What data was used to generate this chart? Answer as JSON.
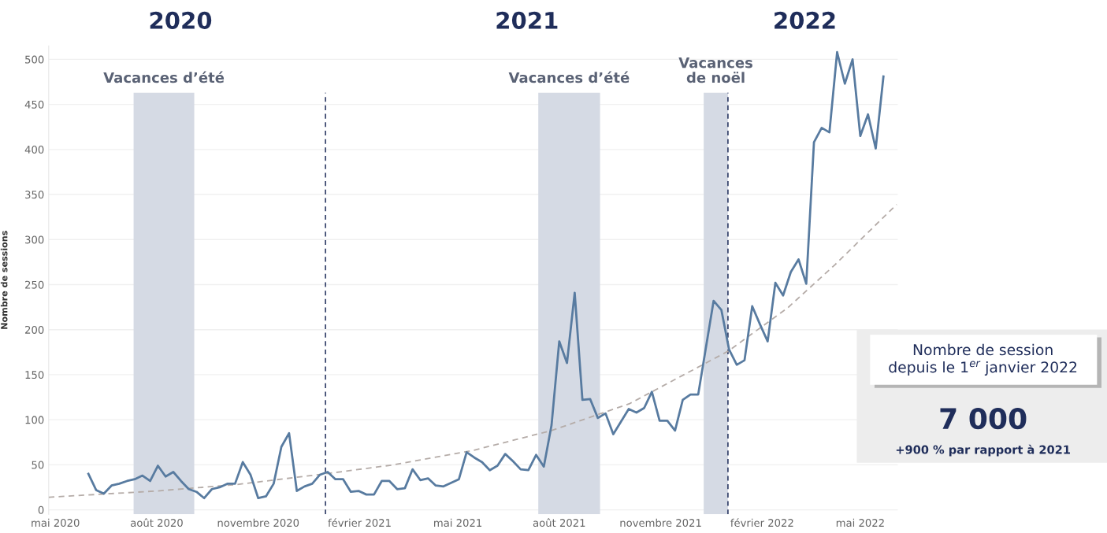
{
  "chart_data": {
    "type": "line",
    "ylabel": "Nombre de sessions",
    "x": [
      "2020-05-31",
      "2020-06-07",
      "2020-06-14",
      "2020-06-21",
      "2020-06-28",
      "2020-07-05",
      "2020-07-12",
      "2020-07-19",
      "2020-07-26",
      "2020-08-02",
      "2020-08-09",
      "2020-08-16",
      "2020-08-23",
      "2020-08-30",
      "2020-09-06",
      "2020-09-13",
      "2020-09-20",
      "2020-09-27",
      "2020-10-04",
      "2020-10-11",
      "2020-10-18",
      "2020-10-25",
      "2020-11-01",
      "2020-11-08",
      "2020-11-15",
      "2020-11-22",
      "2020-11-29",
      "2020-12-06",
      "2020-12-13",
      "2020-12-20",
      "2020-12-27",
      "2021-01-03",
      "2021-01-10",
      "2021-01-17",
      "2021-01-24",
      "2021-01-31",
      "2021-02-07",
      "2021-02-14",
      "2021-02-21",
      "2021-02-28",
      "2021-03-07",
      "2021-03-14",
      "2021-03-21",
      "2021-03-28",
      "2021-04-04",
      "2021-04-11",
      "2021-04-18",
      "2021-04-25",
      "2021-05-02",
      "2021-05-09",
      "2021-05-16",
      "2021-05-23",
      "2021-05-30",
      "2021-06-06",
      "2021-06-13",
      "2021-06-20",
      "2021-06-27",
      "2021-07-04",
      "2021-07-11",
      "2021-07-18",
      "2021-07-25",
      "2021-08-01",
      "2021-08-08",
      "2021-08-15",
      "2021-08-22",
      "2021-08-29",
      "2021-09-05",
      "2021-09-12",
      "2021-09-19",
      "2021-09-26",
      "2021-10-03",
      "2021-10-10",
      "2021-10-17",
      "2021-10-24",
      "2021-10-31",
      "2021-11-07",
      "2021-11-14",
      "2021-11-21",
      "2021-11-28",
      "2021-12-05",
      "2021-12-12",
      "2021-12-19",
      "2021-12-26",
      "2022-01-02",
      "2022-01-09",
      "2022-01-16",
      "2022-01-23",
      "2022-01-30",
      "2022-02-06",
      "2022-02-13",
      "2022-02-20",
      "2022-02-27",
      "2022-03-06",
      "2022-03-13",
      "2022-03-20",
      "2022-03-27",
      "2022-04-03",
      "2022-04-10",
      "2022-04-17",
      "2022-04-24",
      "2022-05-01",
      "2022-05-08",
      "2022-05-15",
      "2022-05-22"
    ],
    "series": [
      {
        "color": "#587ba0",
        "values": [
          40,
          22,
          18,
          27,
          29,
          32,
          34,
          38,
          32,
          49,
          37,
          42,
          32,
          23,
          20,
          13,
          23,
          25,
          29,
          29,
          53,
          39,
          13,
          15,
          29,
          70,
          85,
          21,
          26,
          29,
          39,
          42,
          34,
          34,
          20,
          21,
          17,
          17,
          32,
          32,
          23,
          24,
          45,
          33,
          35,
          27,
          26,
          30,
          34,
          64,
          58,
          53,
          44,
          49,
          62,
          54,
          45,
          44,
          61,
          48,
          94,
          187,
          163,
          241,
          122,
          123,
          102,
          107,
          84,
          98,
          112,
          108,
          113,
          131,
          99,
          99,
          88,
          122,
          128,
          128,
          180,
          232,
          222,
          178,
          161,
          166,
          226,
          206,
          187,
          252,
          238,
          264,
          278,
          251,
          408,
          424,
          419,
          508,
          473,
          500,
          415,
          439,
          401,
          481
        ]
      },
      {
        "type": "line",
        "color": "#b5aca8",
        "line_style": "dashed",
        "x": [
          "2020-04-25",
          "2020-08-02",
          "2020-10-12",
          "2021-01-01",
          "2021-03-04",
          "2021-05-15",
          "2021-07-25",
          "2021-10-04",
          "2022-01-01",
          "2022-02-24",
          "2022-04-08",
          "2022-06-03"
        ],
        "values": [
          14,
          21,
          28,
          40,
          50,
          66,
          88,
          118,
          176,
          224,
          272,
          339
        ]
      }
    ],
    "xlim": [
      "2020-04-25",
      "2022-06-04"
    ],
    "xticks": [
      {
        "value": "2020-05-01",
        "label": "mai 2020"
      },
      {
        "value": "2020-08-01",
        "label": "août 2020"
      },
      {
        "value": "2020-11-01",
        "label": "novembre 2020"
      },
      {
        "value": "2021-02-01",
        "label": "février 2021"
      },
      {
        "value": "2021-05-01",
        "label": "mai 2021"
      },
      {
        "value": "2021-08-01",
        "label": "août 2021"
      },
      {
        "value": "2021-11-01",
        "label": "novembre 2021"
      },
      {
        "value": "2022-02-01",
        "label": "février 2022"
      },
      {
        "value": "2022-05-01",
        "label": "mai 2022"
      }
    ],
    "ylim": [
      -5,
      515
    ],
    "yticks": [
      0,
      50,
      100,
      150,
      200,
      250,
      300,
      350,
      400,
      450,
      500
    ],
    "grid": "y",
    "ref_lines": [
      {
        "axis": "x",
        "value": "2021-01-01",
        "color": "#1f2d5a",
        "line_style": "dashed"
      },
      {
        "axis": "x",
        "value": "2022-01-01",
        "color": "#1f2d5a",
        "line_style": "dashed"
      }
    ],
    "bands": [
      {
        "axis": "x",
        "from": "2020-07-11",
        "to": "2020-09-04",
        "label": "Vacances d’été",
        "color": "#d5dae4"
      },
      {
        "axis": "x",
        "from": "2021-07-13",
        "to": "2021-09-07",
        "label": "Vacances d’été",
        "color": "#d5dae4"
      },
      {
        "axis": "x",
        "from": "2021-12-10",
        "to": "2022-01-01",
        "label": "Vacances\nde noël",
        "color": "#d5dae4"
      }
    ],
    "annotations": [
      "2020",
      "2021",
      "2022",
      "Nombre de session\ndepuis le 1$^{er}$ janvier 2022",
      "7 000",
      "+900 % par rapport à 2021"
    ]
  }
}
